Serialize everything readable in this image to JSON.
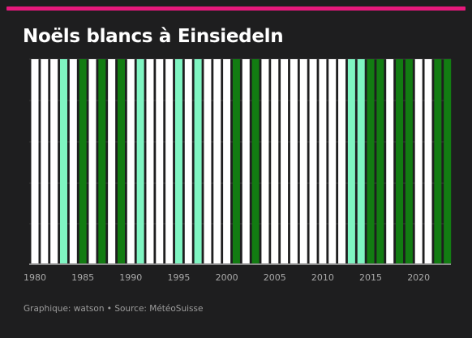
{
  "header": {
    "title": "Noëls blancs à Einsiedeln",
    "accent_color": "#e6197c"
  },
  "footer": {
    "credit": "Graphique: watson • Source: MétéoSuisse"
  },
  "chart_data": {
    "type": "bar",
    "title": "Noëls blancs à Einsiedeln",
    "xlabel": "",
    "ylabel": "",
    "x_ticks": [
      1980,
      1985,
      1990,
      1995,
      2000,
      2005,
      2010,
      2015,
      2020
    ],
    "grid": true,
    "colors": {
      "white": "#ffffff",
      "lightgreen": "#7ff5c2",
      "darkgreen": "#127c12"
    },
    "years": [
      1980,
      1981,
      1982,
      1983,
      1984,
      1985,
      1986,
      1987,
      1988,
      1989,
      1990,
      1991,
      1992,
      1993,
      1994,
      1995,
      1996,
      1997,
      1998,
      1999,
      2000,
      2001,
      2002,
      2003,
      2004,
      2005,
      2006,
      2007,
      2008,
      2009,
      2010,
      2011,
      2012,
      2013,
      2014,
      2015,
      2016,
      2017,
      2018,
      2019,
      2020,
      2021,
      2022,
      2023
    ],
    "categories": [
      "white",
      "white",
      "white",
      "lightgreen",
      "white",
      "darkgreen",
      "white",
      "darkgreen",
      "white",
      "darkgreen",
      "white",
      "lightgreen",
      "white",
      "white",
      "white",
      "lightgreen",
      "white",
      "lightgreen",
      "white",
      "white",
      "white",
      "darkgreen",
      "white",
      "darkgreen",
      "white",
      "white",
      "white",
      "white",
      "white",
      "white",
      "white",
      "white",
      "white",
      "lightgreen",
      "lightgreen",
      "darkgreen",
      "darkgreen",
      "white",
      "darkgreen",
      "darkgreen",
      "white",
      "white",
      "darkgreen",
      "darkgreen"
    ]
  }
}
